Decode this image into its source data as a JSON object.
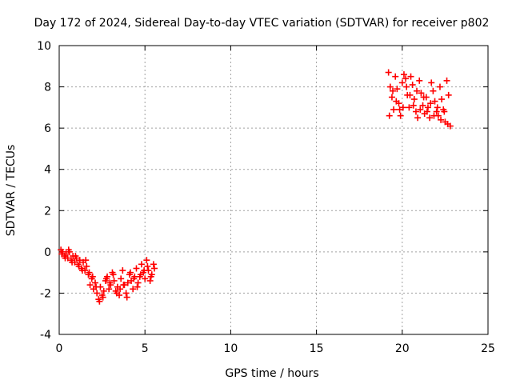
{
  "colors": {
    "series": "#ff0000",
    "grid": "#a0a0a0",
    "axis": "#000000",
    "background": "#ffffff"
  },
  "chart_data": {
    "type": "scatter",
    "title": "Day 172 of 2024, Sidereal Day-to-day VTEC variation (SDTVAR) for receiver p802",
    "xlabel": "GPS time / hours",
    "ylabel": "SDTVAR / TECUs",
    "xlim": [
      0,
      25
    ],
    "ylim": [
      -4,
      10
    ],
    "xticks": [
      0,
      5,
      10,
      15,
      20,
      25
    ],
    "yticks": [
      -4,
      -2,
      0,
      2,
      4,
      6,
      8,
      10
    ],
    "grid": true,
    "marker": "plus",
    "series": [
      {
        "name": "SDTVAR",
        "x": [
          0.1,
          0.2,
          0.3,
          0.4,
          0.5,
          0.6,
          0.7,
          0.8,
          0.9,
          1.0,
          1.1,
          1.2,
          1.3,
          1.4,
          1.5,
          1.6,
          1.7,
          1.8,
          1.9,
          2.0,
          2.1,
          2.2,
          2.3,
          2.4,
          2.5,
          2.6,
          2.7,
          2.8,
          2.9,
          3.0,
          3.1,
          3.2,
          3.3,
          3.4,
          3.5,
          3.6,
          3.7,
          3.8,
          3.9,
          4.0,
          4.1,
          4.2,
          4.3,
          4.4,
          4.5,
          4.6,
          4.7,
          4.8,
          4.9,
          5.0,
          5.1,
          5.2,
          5.3,
          5.4,
          5.5,
          0.15,
          0.35,
          0.55,
          0.75,
          0.95,
          1.15,
          1.35,
          1.55,
          1.75,
          1.95,
          2.15,
          2.35,
          2.55,
          2.75,
          2.95,
          3.15,
          3.35,
          3.55,
          3.75,
          3.95,
          4.15,
          4.35,
          4.55,
          4.75,
          4.95,
          5.15,
          5.35,
          5.55,
          19.2,
          19.3,
          19.4,
          19.5,
          19.6,
          19.7,
          19.8,
          19.9,
          20.0,
          20.1,
          20.2,
          20.3,
          20.4,
          20.5,
          20.6,
          20.7,
          20.8,
          20.9,
          21.0,
          21.1,
          21.2,
          21.3,
          21.4,
          21.5,
          21.6,
          21.7,
          21.8,
          21.9,
          22.0,
          22.1,
          22.2,
          22.3,
          22.4,
          22.5,
          22.6,
          22.7,
          22.8,
          19.25,
          19.45,
          19.65,
          19.85,
          20.05,
          20.25,
          20.45,
          20.65,
          20.85,
          21.05,
          21.25,
          21.45,
          21.65,
          21.85,
          22.05,
          22.25,
          22.45,
          22.65
        ],
        "y": [
          0.1,
          0.0,
          -0.2,
          -0.1,
          -0.3,
          0.0,
          -0.4,
          -0.2,
          -0.5,
          -0.3,
          -0.6,
          -0.4,
          -0.8,
          -0.5,
          -0.9,
          -0.7,
          -1.1,
          -1.6,
          -1.3,
          -1.8,
          -1.5,
          -2.0,
          -2.3,
          -1.7,
          -2.1,
          -1.9,
          -1.4,
          -1.2,
          -1.8,
          -1.6,
          -1.0,
          -1.4,
          -1.9,
          -1.7,
          -2.1,
          -1.3,
          -0.9,
          -1.6,
          -2.0,
          -1.5,
          -1.1,
          -1.4,
          -1.8,
          -1.2,
          -0.8,
          -1.5,
          -1.2,
          -0.6,
          -1.0,
          -1.3,
          -0.4,
          -0.9,
          -1.4,
          -1.1,
          -0.6,
          -0.1,
          -0.3,
          0.1,
          -0.5,
          -0.2,
          -0.7,
          -0.9,
          -0.4,
          -1.0,
          -1.2,
          -1.7,
          -2.4,
          -2.2,
          -1.3,
          -1.5,
          -1.1,
          -2.0,
          -1.8,
          -1.6,
          -2.2,
          -1.0,
          -1.3,
          -1.7,
          -1.1,
          -0.9,
          -0.7,
          -1.2,
          -0.8,
          8.7,
          8.0,
          7.5,
          6.9,
          8.5,
          7.9,
          7.2,
          6.6,
          8.2,
          8.6,
          8.4,
          7.6,
          7.0,
          8.5,
          8.1,
          7.4,
          6.8,
          6.5,
          8.3,
          7.7,
          7.1,
          6.7,
          7.5,
          7.0,
          6.5,
          8.2,
          7.8,
          7.3,
          6.8,
          6.6,
          8.0,
          7.4,
          6.9,
          6.3,
          8.3,
          7.6,
          6.1,
          6.6,
          7.8,
          7.3,
          6.9,
          7.0,
          8.0,
          7.6,
          7.1,
          7.8,
          6.9,
          7.5,
          6.8,
          7.2,
          6.6,
          7.0,
          6.4,
          6.8,
          6.2
        ]
      }
    ]
  }
}
